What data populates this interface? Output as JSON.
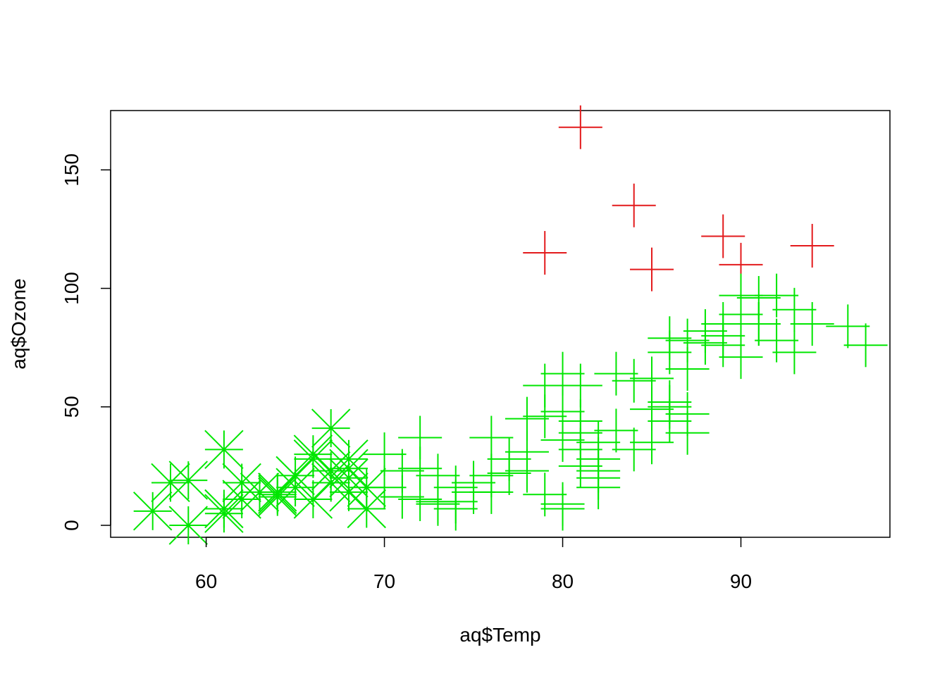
{
  "chart_data": {
    "type": "scatter",
    "title": "",
    "xlabel": "aq$Temp",
    "ylabel": "aq$Ozone",
    "xlim": [
      54.64,
      98.36
    ],
    "ylim": [
      -5.04,
      175.04
    ],
    "x_ticks": [
      60,
      70,
      80,
      90
    ],
    "y_ticks": [
      0,
      50,
      100,
      150
    ],
    "grid": false,
    "legend": "none",
    "colors": {
      "high": "#e31a1c",
      "normal": "#00e600"
    },
    "series": [
      {
        "color_key": "high",
        "marker": "plus",
        "points": [
          [
            81,
            168
          ],
          [
            84,
            135
          ],
          [
            79,
            115
          ],
          [
            85,
            108
          ],
          [
            89,
            122
          ],
          [
            90,
            110
          ],
          [
            94,
            118
          ]
        ]
      },
      {
        "color_key": "normal",
        "marker": "star",
        "points": [
          [
            57,
            6
          ],
          [
            58,
            18
          ],
          [
            59,
            19
          ],
          [
            59,
            0
          ],
          [
            61,
            32
          ],
          [
            61,
            7
          ],
          [
            61,
            5
          ],
          [
            62,
            11
          ],
          [
            62,
            18
          ],
          [
            63,
            14
          ],
          [
            64,
            14
          ],
          [
            64,
            13
          ],
          [
            65,
            21
          ],
          [
            66,
            30
          ],
          [
            66,
            11
          ],
          [
            66,
            28
          ],
          [
            67,
            41
          ],
          [
            67,
            18
          ],
          [
            67,
            23
          ],
          [
            68,
            28
          ],
          [
            68,
            20
          ],
          [
            68,
            24
          ],
          [
            69,
            16
          ],
          [
            69,
            7
          ],
          [
            68,
            14
          ],
          [
            65,
            16
          ],
          [
            64,
            12
          ]
        ]
      },
      {
        "color_key": "normal",
        "marker": "plus",
        "points": [
          [
            70,
            30
          ],
          [
            70,
            16
          ],
          [
            71,
            23
          ],
          [
            71,
            12
          ],
          [
            72,
            37
          ],
          [
            72,
            24
          ],
          [
            72,
            11
          ],
          [
            73,
            9
          ],
          [
            73,
            21
          ],
          [
            73,
            10
          ],
          [
            74,
            16
          ],
          [
            74,
            10
          ],
          [
            74,
            7
          ],
          [
            75,
            14
          ],
          [
            75,
            18
          ],
          [
            76,
            37
          ],
          [
            76,
            21
          ],
          [
            76,
            14
          ],
          [
            77,
            28
          ],
          [
            77,
            22
          ],
          [
            78,
            45
          ],
          [
            78,
            31
          ],
          [
            78,
            23
          ],
          [
            79,
            46
          ],
          [
            79,
            59
          ],
          [
            79,
            13
          ],
          [
            80,
            64
          ],
          [
            80,
            48
          ],
          [
            80,
            7
          ],
          [
            80,
            36
          ],
          [
            80,
            9
          ],
          [
            81,
            59
          ],
          [
            81,
            44
          ],
          [
            81,
            39
          ],
          [
            81,
            25
          ],
          [
            81,
            32
          ],
          [
            82,
            35
          ],
          [
            82,
            23
          ],
          [
            82,
            20
          ],
          [
            82,
            28
          ],
          [
            82,
            16
          ],
          [
            83,
            64
          ],
          [
            83,
            40
          ],
          [
            84,
            61
          ],
          [
            84,
            32
          ],
          [
            85,
            62
          ],
          [
            85,
            49
          ],
          [
            85,
            35
          ],
          [
            86,
            79
          ],
          [
            86,
            50
          ],
          [
            86,
            73
          ],
          [
            86,
            44
          ],
          [
            86,
            52
          ],
          [
            87,
            66
          ],
          [
            87,
            78
          ],
          [
            87,
            47
          ],
          [
            87,
            39
          ],
          [
            88,
            77
          ],
          [
            88,
            82
          ],
          [
            89,
            85
          ],
          [
            89,
            76
          ],
          [
            90,
            71
          ],
          [
            90,
            89
          ],
          [
            90,
            97
          ],
          [
            91,
            96
          ],
          [
            91,
            85
          ],
          [
            92,
            97
          ],
          [
            92,
            78
          ],
          [
            93,
            73
          ],
          [
            93,
            91
          ],
          [
            94,
            85
          ],
          [
            96,
            84
          ],
          [
            97,
            76
          ],
          [
            89,
            80
          ],
          [
            91,
            85
          ]
        ]
      }
    ]
  }
}
